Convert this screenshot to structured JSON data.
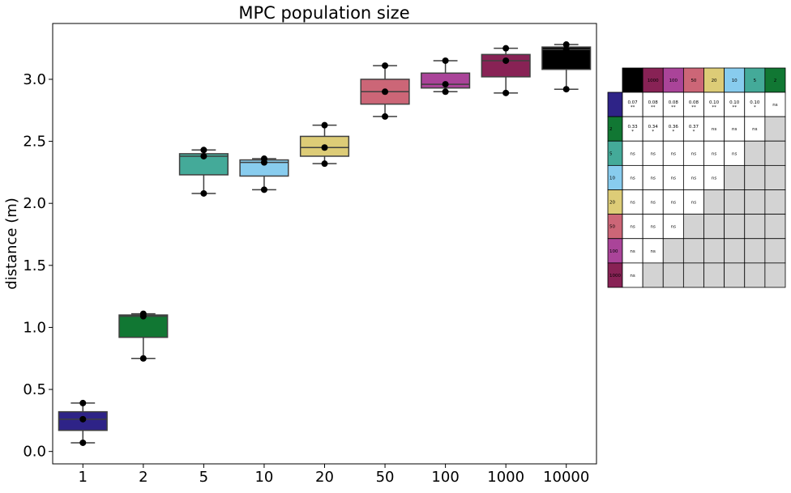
{
  "chart_data": {
    "type": "box",
    "title": "MPC population size",
    "xlabel": "",
    "ylabel": "distance (m)",
    "ylim": [
      -0.1,
      3.45
    ],
    "yticks": [
      0.0,
      0.5,
      1.0,
      1.5,
      2.0,
      2.5,
      3.0
    ],
    "ytick_labels": [
      "0.0",
      "0.5",
      "1.0",
      "1.5",
      "2.0",
      "2.5",
      "3.0"
    ],
    "categories": [
      "1",
      "2",
      "5",
      "10",
      "20",
      "50",
      "100",
      "1000",
      "10000"
    ],
    "colors": [
      "#2e2387",
      "#117733",
      "#44aa99",
      "#88ccee",
      "#ddcc77",
      "#cc6677",
      "#aa4499",
      "#882255",
      "#000000"
    ],
    "boxes": [
      {
        "whisker_low": 0.07,
        "q1": 0.17,
        "median": 0.26,
        "q3": 0.32,
        "whisker_high": 0.39,
        "points": [
          0.07,
          0.26,
          0.39
        ]
      },
      {
        "whisker_low": 0.75,
        "q1": 0.92,
        "median": 1.09,
        "q3": 1.1,
        "whisker_high": 1.11,
        "points": [
          0.75,
          1.09,
          1.11
        ]
      },
      {
        "whisker_low": 2.08,
        "q1": 2.23,
        "median": 2.38,
        "q3": 2.4,
        "whisker_high": 2.43,
        "points": [
          2.08,
          2.38,
          2.43
        ]
      },
      {
        "whisker_low": 2.11,
        "q1": 2.22,
        "median": 2.33,
        "q3": 2.35,
        "whisker_high": 2.36,
        "points": [
          2.11,
          2.33,
          2.36
        ]
      },
      {
        "whisker_low": 2.32,
        "q1": 2.38,
        "median": 2.45,
        "q3": 2.54,
        "whisker_high": 2.63,
        "points": [
          2.32,
          2.45,
          2.63
        ]
      },
      {
        "whisker_low": 2.7,
        "q1": 2.8,
        "median": 2.9,
        "q3": 3.0,
        "whisker_high": 3.11,
        "points": [
          2.7,
          2.9,
          3.11
        ]
      },
      {
        "whisker_low": 2.9,
        "q1": 2.93,
        "median": 2.96,
        "q3": 3.05,
        "whisker_high": 3.15,
        "points": [
          2.9,
          2.96,
          3.15
        ]
      },
      {
        "whisker_low": 2.89,
        "q1": 3.02,
        "median": 3.15,
        "q3": 3.2,
        "whisker_high": 3.25,
        "points": [
          2.89,
          3.15,
          3.25
        ]
      },
      {
        "whisker_low": 2.92,
        "q1": 3.08,
        "median": 3.24,
        "q3": 3.26,
        "whisker_high": 3.28,
        "points": [
          2.92,
          3.24,
          3.28
        ]
      }
    ],
    "significance_table": {
      "column_labels": [
        "",
        "1000",
        "100",
        "50",
        "20",
        "10",
        "5",
        "2"
      ],
      "row_labels": [
        "",
        "2",
        "5",
        "10",
        "20",
        "50",
        "100",
        "1000"
      ],
      "cells": [
        [
          "0.07\n**",
          "0.08\n**",
          "0.08\n**",
          "0.08\n**",
          "0.10\n**",
          "0.10\n**",
          "0.10\n*",
          "ns"
        ],
        [
          "0.33\n*",
          "0.34\n*",
          "0.36\n*",
          "0.37\n*",
          "ns",
          "ns",
          "ns",
          null
        ],
        [
          "ns",
          "ns",
          "ns",
          "ns",
          "ns",
          "ns",
          null,
          null
        ],
        [
          "ns",
          "ns",
          "ns",
          "ns",
          "ns",
          null,
          null,
          null
        ],
        [
          "ns",
          "ns",
          "ns",
          "ns",
          null,
          null,
          null,
          null
        ],
        [
          "ns",
          "ns",
          "ns",
          null,
          null,
          null,
          null,
          null
        ],
        [
          "ns",
          "ns",
          null,
          null,
          null,
          null,
          null,
          null
        ],
        [
          "ns",
          null,
          null,
          null,
          null,
          null,
          null,
          null
        ]
      ],
      "column_colors": [
        "#000000",
        "#882255",
        "#aa4499",
        "#cc6677",
        "#ddcc77",
        "#88ccee",
        "#44aa99",
        "#117733"
      ],
      "row_colors": [
        "#2e2387",
        "#117733",
        "#44aa99",
        "#88ccee",
        "#ddcc77",
        "#cc6677",
        "#aa4499",
        "#882255"
      ],
      "empty_cell_color": "#d3d3d3"
    }
  }
}
